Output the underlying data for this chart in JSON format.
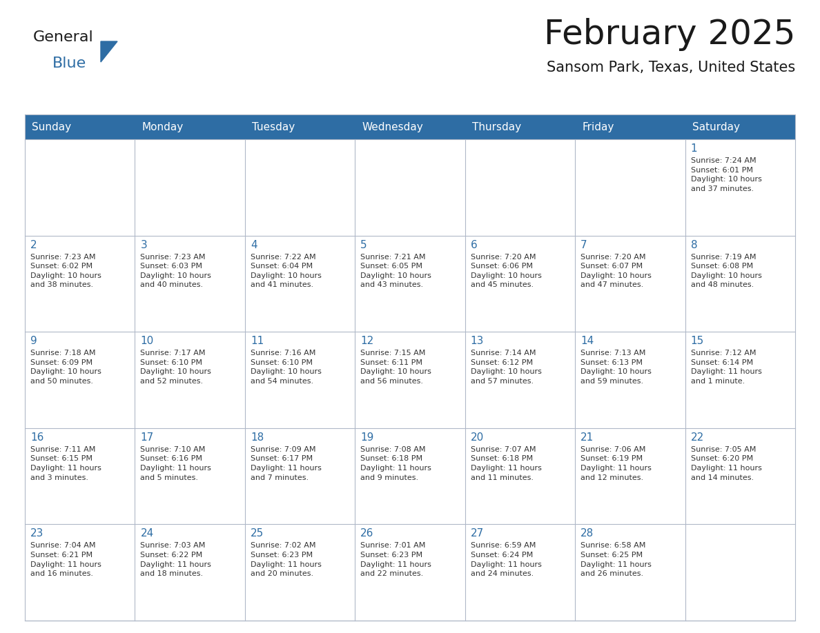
{
  "title": "February 2025",
  "subtitle": "Sansom Park, Texas, United States",
  "header_bg_color": "#2E6DA4",
  "header_text_color": "#FFFFFF",
  "cell_bg_color": "#FFFFFF",
  "cell_border_color": "#B0B8C8",
  "day_number_color": "#2E6DA4",
  "cell_text_color": "#333333",
  "bg_color": "#FFFFFF",
  "title_color": "#1a1a1a",
  "subtitle_color": "#1a1a1a",
  "days_of_week": [
    "Sunday",
    "Monday",
    "Tuesday",
    "Wednesday",
    "Thursday",
    "Friday",
    "Saturday"
  ],
  "logo_text1": "General",
  "logo_text2": "Blue",
  "logo_color1": "#1a1a1a",
  "logo_color2": "#2E6DA4",
  "weeks": [
    [
      {
        "day": null,
        "info": null
      },
      {
        "day": null,
        "info": null
      },
      {
        "day": null,
        "info": null
      },
      {
        "day": null,
        "info": null
      },
      {
        "day": null,
        "info": null
      },
      {
        "day": null,
        "info": null
      },
      {
        "day": 1,
        "info": "Sunrise: 7:24 AM\nSunset: 6:01 PM\nDaylight: 10 hours\nand 37 minutes."
      }
    ],
    [
      {
        "day": 2,
        "info": "Sunrise: 7:23 AM\nSunset: 6:02 PM\nDaylight: 10 hours\nand 38 minutes."
      },
      {
        "day": 3,
        "info": "Sunrise: 7:23 AM\nSunset: 6:03 PM\nDaylight: 10 hours\nand 40 minutes."
      },
      {
        "day": 4,
        "info": "Sunrise: 7:22 AM\nSunset: 6:04 PM\nDaylight: 10 hours\nand 41 minutes."
      },
      {
        "day": 5,
        "info": "Sunrise: 7:21 AM\nSunset: 6:05 PM\nDaylight: 10 hours\nand 43 minutes."
      },
      {
        "day": 6,
        "info": "Sunrise: 7:20 AM\nSunset: 6:06 PM\nDaylight: 10 hours\nand 45 minutes."
      },
      {
        "day": 7,
        "info": "Sunrise: 7:20 AM\nSunset: 6:07 PM\nDaylight: 10 hours\nand 47 minutes."
      },
      {
        "day": 8,
        "info": "Sunrise: 7:19 AM\nSunset: 6:08 PM\nDaylight: 10 hours\nand 48 minutes."
      }
    ],
    [
      {
        "day": 9,
        "info": "Sunrise: 7:18 AM\nSunset: 6:09 PM\nDaylight: 10 hours\nand 50 minutes."
      },
      {
        "day": 10,
        "info": "Sunrise: 7:17 AM\nSunset: 6:10 PM\nDaylight: 10 hours\nand 52 minutes."
      },
      {
        "day": 11,
        "info": "Sunrise: 7:16 AM\nSunset: 6:10 PM\nDaylight: 10 hours\nand 54 minutes."
      },
      {
        "day": 12,
        "info": "Sunrise: 7:15 AM\nSunset: 6:11 PM\nDaylight: 10 hours\nand 56 minutes."
      },
      {
        "day": 13,
        "info": "Sunrise: 7:14 AM\nSunset: 6:12 PM\nDaylight: 10 hours\nand 57 minutes."
      },
      {
        "day": 14,
        "info": "Sunrise: 7:13 AM\nSunset: 6:13 PM\nDaylight: 10 hours\nand 59 minutes."
      },
      {
        "day": 15,
        "info": "Sunrise: 7:12 AM\nSunset: 6:14 PM\nDaylight: 11 hours\nand 1 minute."
      }
    ],
    [
      {
        "day": 16,
        "info": "Sunrise: 7:11 AM\nSunset: 6:15 PM\nDaylight: 11 hours\nand 3 minutes."
      },
      {
        "day": 17,
        "info": "Sunrise: 7:10 AM\nSunset: 6:16 PM\nDaylight: 11 hours\nand 5 minutes."
      },
      {
        "day": 18,
        "info": "Sunrise: 7:09 AM\nSunset: 6:17 PM\nDaylight: 11 hours\nand 7 minutes."
      },
      {
        "day": 19,
        "info": "Sunrise: 7:08 AM\nSunset: 6:18 PM\nDaylight: 11 hours\nand 9 minutes."
      },
      {
        "day": 20,
        "info": "Sunrise: 7:07 AM\nSunset: 6:18 PM\nDaylight: 11 hours\nand 11 minutes."
      },
      {
        "day": 21,
        "info": "Sunrise: 7:06 AM\nSunset: 6:19 PM\nDaylight: 11 hours\nand 12 minutes."
      },
      {
        "day": 22,
        "info": "Sunrise: 7:05 AM\nSunset: 6:20 PM\nDaylight: 11 hours\nand 14 minutes."
      }
    ],
    [
      {
        "day": 23,
        "info": "Sunrise: 7:04 AM\nSunset: 6:21 PM\nDaylight: 11 hours\nand 16 minutes."
      },
      {
        "day": 24,
        "info": "Sunrise: 7:03 AM\nSunset: 6:22 PM\nDaylight: 11 hours\nand 18 minutes."
      },
      {
        "day": 25,
        "info": "Sunrise: 7:02 AM\nSunset: 6:23 PM\nDaylight: 11 hours\nand 20 minutes."
      },
      {
        "day": 26,
        "info": "Sunrise: 7:01 AM\nSunset: 6:23 PM\nDaylight: 11 hours\nand 22 minutes."
      },
      {
        "day": 27,
        "info": "Sunrise: 6:59 AM\nSunset: 6:24 PM\nDaylight: 11 hours\nand 24 minutes."
      },
      {
        "day": 28,
        "info": "Sunrise: 6:58 AM\nSunset: 6:25 PM\nDaylight: 11 hours\nand 26 minutes."
      },
      {
        "day": null,
        "info": null
      }
    ]
  ]
}
